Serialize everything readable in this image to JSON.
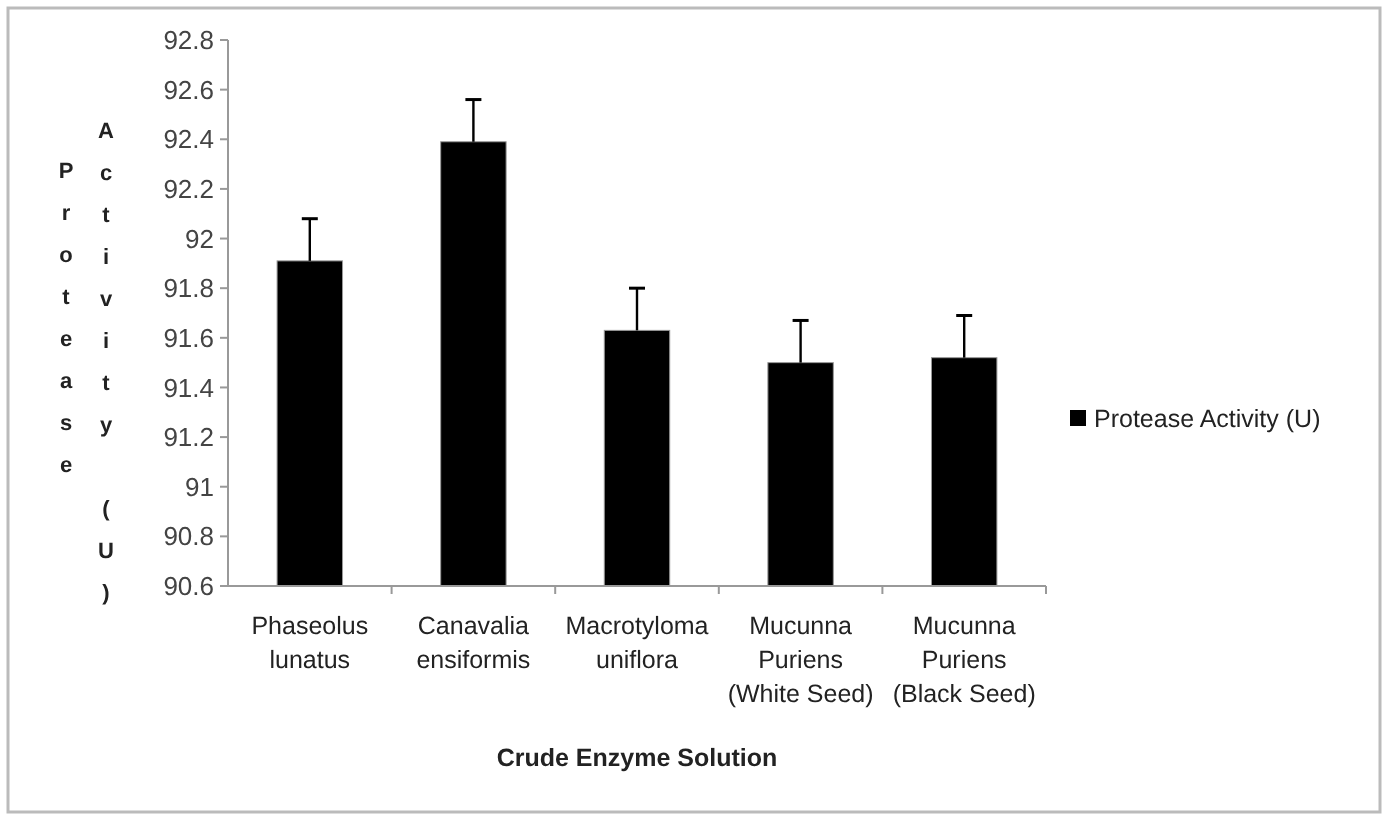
{
  "chart_data": {
    "type": "bar",
    "xlabel": "Crude Enzyme Solution",
    "ylabel": "Protease Activity (U)",
    "categories": [
      "Phaseolus lunatus",
      "Canavalia ensiformis",
      "Macrotyloma uniflora",
      "Mucunna Puriens (White Seed)",
      "Mucunna Puriens (Black Seed)"
    ],
    "series": [
      {
        "name": "Protease Activity (U)",
        "color": "#000000",
        "values": [
          91.91,
          92.39,
          91.63,
          91.5,
          91.52
        ],
        "errors": [
          [
            91.91,
            92.08
          ],
          [
            92.39,
            92.56
          ],
          [
            91.63,
            91.8
          ],
          [
            91.5,
            91.67
          ],
          [
            91.52,
            91.69
          ]
        ]
      }
    ],
    "ylim": [
      90.6,
      92.8
    ],
    "yticks": [
      90.6,
      90.8,
      91,
      91.2,
      91.4,
      91.6,
      91.8,
      92,
      92.2,
      92.4,
      92.6,
      92.8
    ],
    "legend": "right"
  }
}
